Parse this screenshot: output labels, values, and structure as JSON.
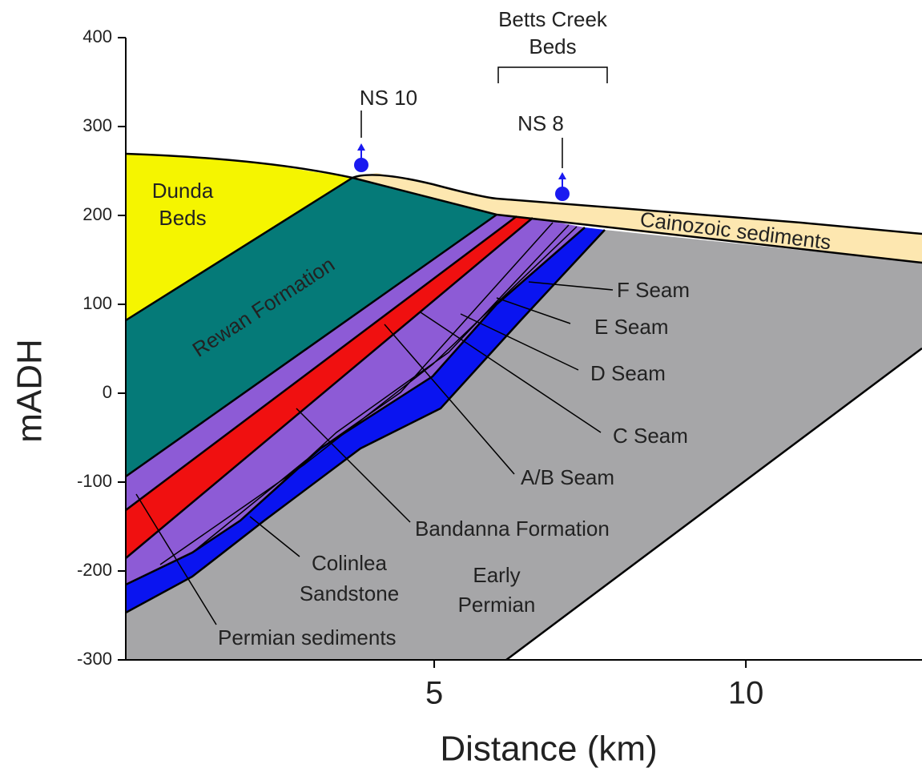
{
  "axes": {
    "ylabel": "mADH",
    "xlabel": "Distance (km)",
    "ylim": [
      -300,
      400
    ],
    "yticks": [
      400,
      300,
      200,
      100,
      0,
      -100,
      -200,
      -300
    ],
    "xlim": [
      0,
      12.8
    ],
    "xticks": [
      5,
      10
    ]
  },
  "labels": {
    "betts_creek": [
      "Betts Creek",
      "Beds"
    ],
    "ns10": "NS 10",
    "ns8": "NS 8",
    "dunda": [
      "Dunda",
      "Beds"
    ],
    "rewan": "Rewan Formation",
    "cainozoic": "Cainozoic sediments",
    "f_seam": "F Seam",
    "e_seam": "E Seam",
    "d_seam": "D Seam",
    "c_seam": "C Seam",
    "ab_seam": "A/B Seam",
    "bandanna": "Bandanna Formation",
    "colinlea": [
      "Colinlea",
      "Sandstone"
    ],
    "early_permian": [
      "Early",
      "Permian"
    ],
    "permian": "Permian sediments"
  }
}
